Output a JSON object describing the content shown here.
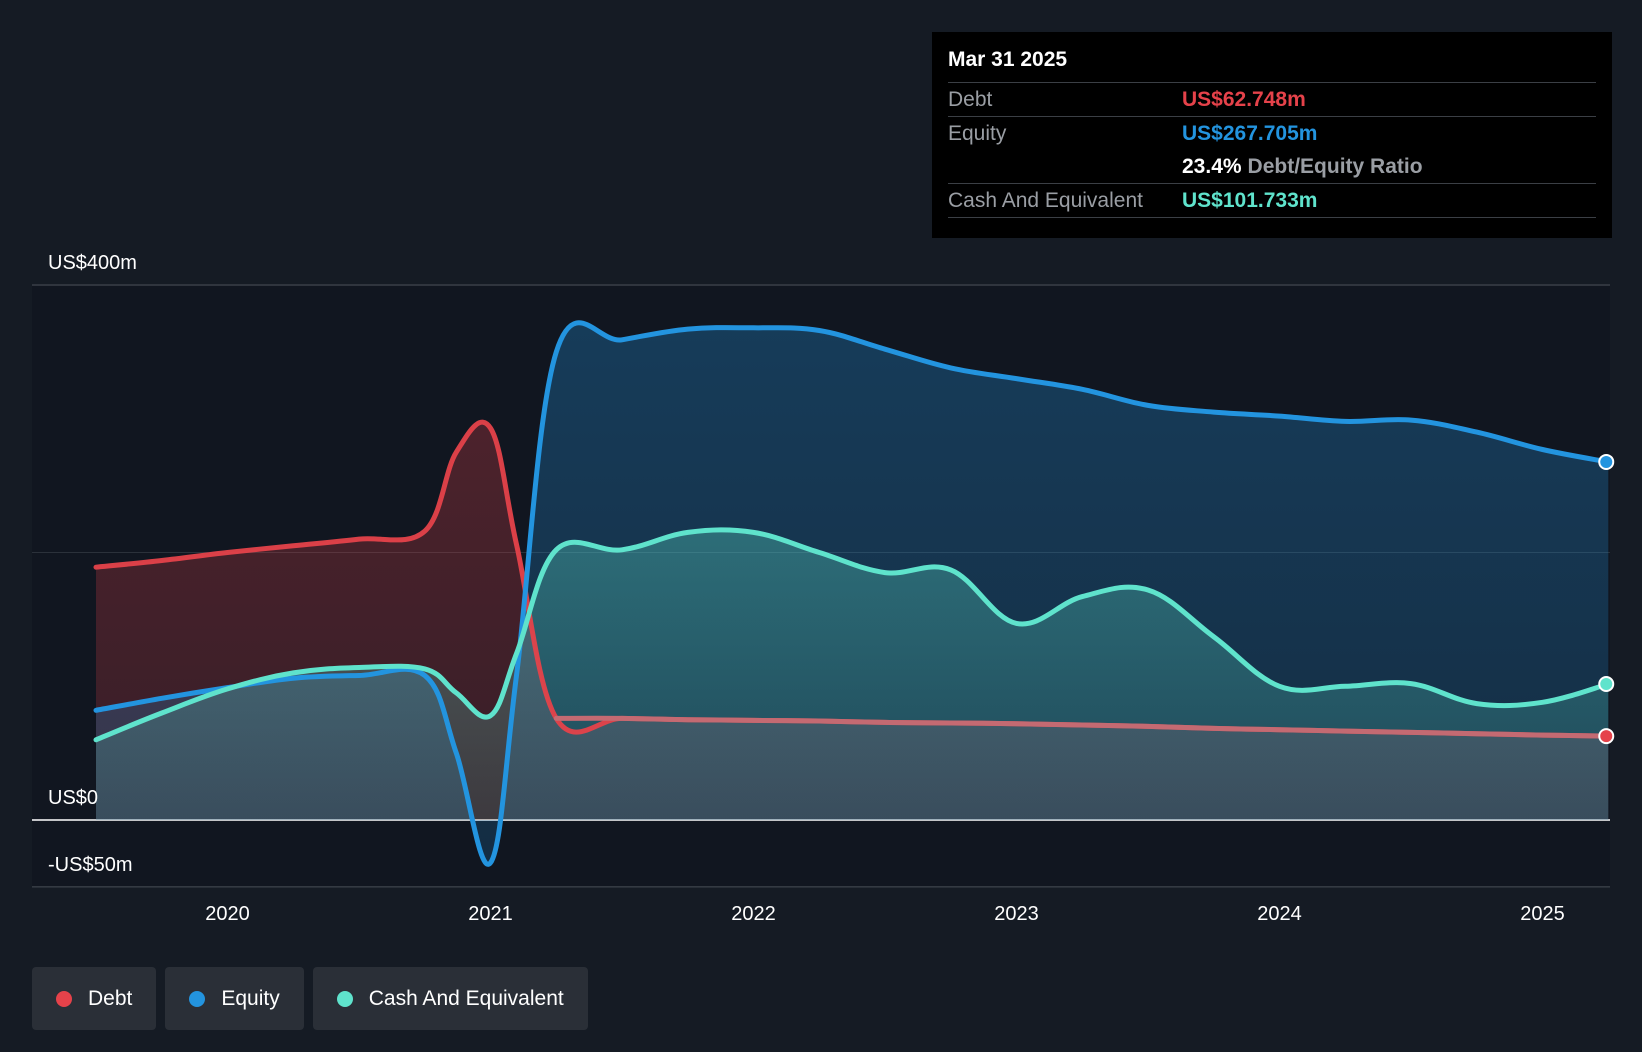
{
  "colors": {
    "debt": "#e5424a",
    "equity": "#2394df",
    "cash": "#5fe3cc",
    "background": "#151b24"
  },
  "tooltip": {
    "date": "Mar 31 2025",
    "debt_label": "Debt",
    "debt_value": "US$62.748m",
    "equity_label": "Equity",
    "equity_value": "US$267.705m",
    "ratio_value": "23.4%",
    "ratio_label": "Debt/Equity Ratio",
    "cash_label": "Cash And Equivalent",
    "cash_value": "US$101.733m"
  },
  "legend": [
    {
      "label": "Debt",
      "color": "#e5424a"
    },
    {
      "label": "Equity",
      "color": "#2394df"
    },
    {
      "label": "Cash And Equivalent",
      "color": "#5fe3cc"
    }
  ],
  "chart_data": {
    "type": "area",
    "title": "",
    "xlabel": "",
    "ylabel": "",
    "x_range": [
      2019.45,
      2025.25
    ],
    "ylim": [
      -50,
      400
    ],
    "y_tick_labels": [
      {
        "value": 400,
        "label": "US$400m"
      },
      {
        "value": 0,
        "label": "US$0"
      },
      {
        "value": -50,
        "label": "-US$50m"
      }
    ],
    "gridlines": [
      400,
      200
    ],
    "x_ticks": [
      {
        "value": 2020,
        "label": "2020"
      },
      {
        "value": 2021,
        "label": "2021"
      },
      {
        "value": 2022,
        "label": "2022"
      },
      {
        "value": 2023,
        "label": "2023"
      },
      {
        "value": 2024,
        "label": "2024"
      },
      {
        "value": 2025,
        "label": "2025"
      }
    ],
    "series": [
      {
        "name": "Debt",
        "key": "debt",
        "points": [
          [
            2019.5,
            189
          ],
          [
            2019.75,
            194
          ],
          [
            2020.0,
            200
          ],
          [
            2020.25,
            205
          ],
          [
            2020.5,
            210
          ],
          [
            2020.75,
            216
          ],
          [
            2020.87,
            275
          ],
          [
            2021.0,
            293
          ],
          [
            2021.1,
            205
          ],
          [
            2021.25,
            76
          ],
          [
            2021.5,
            76
          ],
          [
            2021.75,
            75
          ],
          [
            2022.0,
            74.5
          ],
          [
            2022.25,
            74
          ],
          [
            2022.5,
            73
          ],
          [
            2022.75,
            72.5
          ],
          [
            2023.0,
            72
          ],
          [
            2023.25,
            71
          ],
          [
            2023.5,
            70
          ],
          [
            2023.75,
            68.5
          ],
          [
            2024.0,
            67.5
          ],
          [
            2024.25,
            66.5
          ],
          [
            2024.5,
            65.5
          ],
          [
            2024.75,
            64.5
          ],
          [
            2025.0,
            63.5
          ],
          [
            2025.25,
            62.7
          ]
        ]
      },
      {
        "name": "Equity",
        "key": "equity",
        "points": [
          [
            2019.5,
            82
          ],
          [
            2019.75,
            91
          ],
          [
            2020.0,
            99
          ],
          [
            2020.25,
            106
          ],
          [
            2020.5,
            108
          ],
          [
            2020.75,
            108
          ],
          [
            2020.87,
            50
          ],
          [
            2021.0,
            -32
          ],
          [
            2021.1,
            110
          ],
          [
            2021.25,
            350
          ],
          [
            2021.5,
            359
          ],
          [
            2021.75,
            367
          ],
          [
            2022.0,
            368
          ],
          [
            2022.25,
            366
          ],
          [
            2022.5,
            352
          ],
          [
            2022.75,
            338
          ],
          [
            2023.0,
            330
          ],
          [
            2023.25,
            322
          ],
          [
            2023.5,
            310
          ],
          [
            2023.75,
            305
          ],
          [
            2024.0,
            302
          ],
          [
            2024.25,
            298
          ],
          [
            2024.5,
            299
          ],
          [
            2024.75,
            290
          ],
          [
            2025.0,
            277
          ],
          [
            2025.25,
            267.7
          ]
        ]
      },
      {
        "name": "Cash And Equivalent",
        "key": "cash",
        "points": [
          [
            2019.5,
            60
          ],
          [
            2019.75,
            80
          ],
          [
            2020.0,
            98
          ],
          [
            2020.25,
            110
          ],
          [
            2020.5,
            114
          ],
          [
            2020.75,
            113
          ],
          [
            2020.87,
            95
          ],
          [
            2021.0,
            78
          ],
          [
            2021.1,
            125
          ],
          [
            2021.25,
            202
          ],
          [
            2021.5,
            202
          ],
          [
            2021.75,
            215
          ],
          [
            2022.0,
            215
          ],
          [
            2022.25,
            200
          ],
          [
            2022.5,
            185
          ],
          [
            2022.75,
            187
          ],
          [
            2023.0,
            147
          ],
          [
            2023.25,
            167
          ],
          [
            2023.5,
            172
          ],
          [
            2023.75,
            137
          ],
          [
            2024.0,
            100
          ],
          [
            2024.25,
            100
          ],
          [
            2024.5,
            102
          ],
          [
            2024.75,
            87
          ],
          [
            2025.0,
            88
          ],
          [
            2025.25,
            101.7
          ]
        ]
      }
    ],
    "legend_position": "bottom-left"
  }
}
